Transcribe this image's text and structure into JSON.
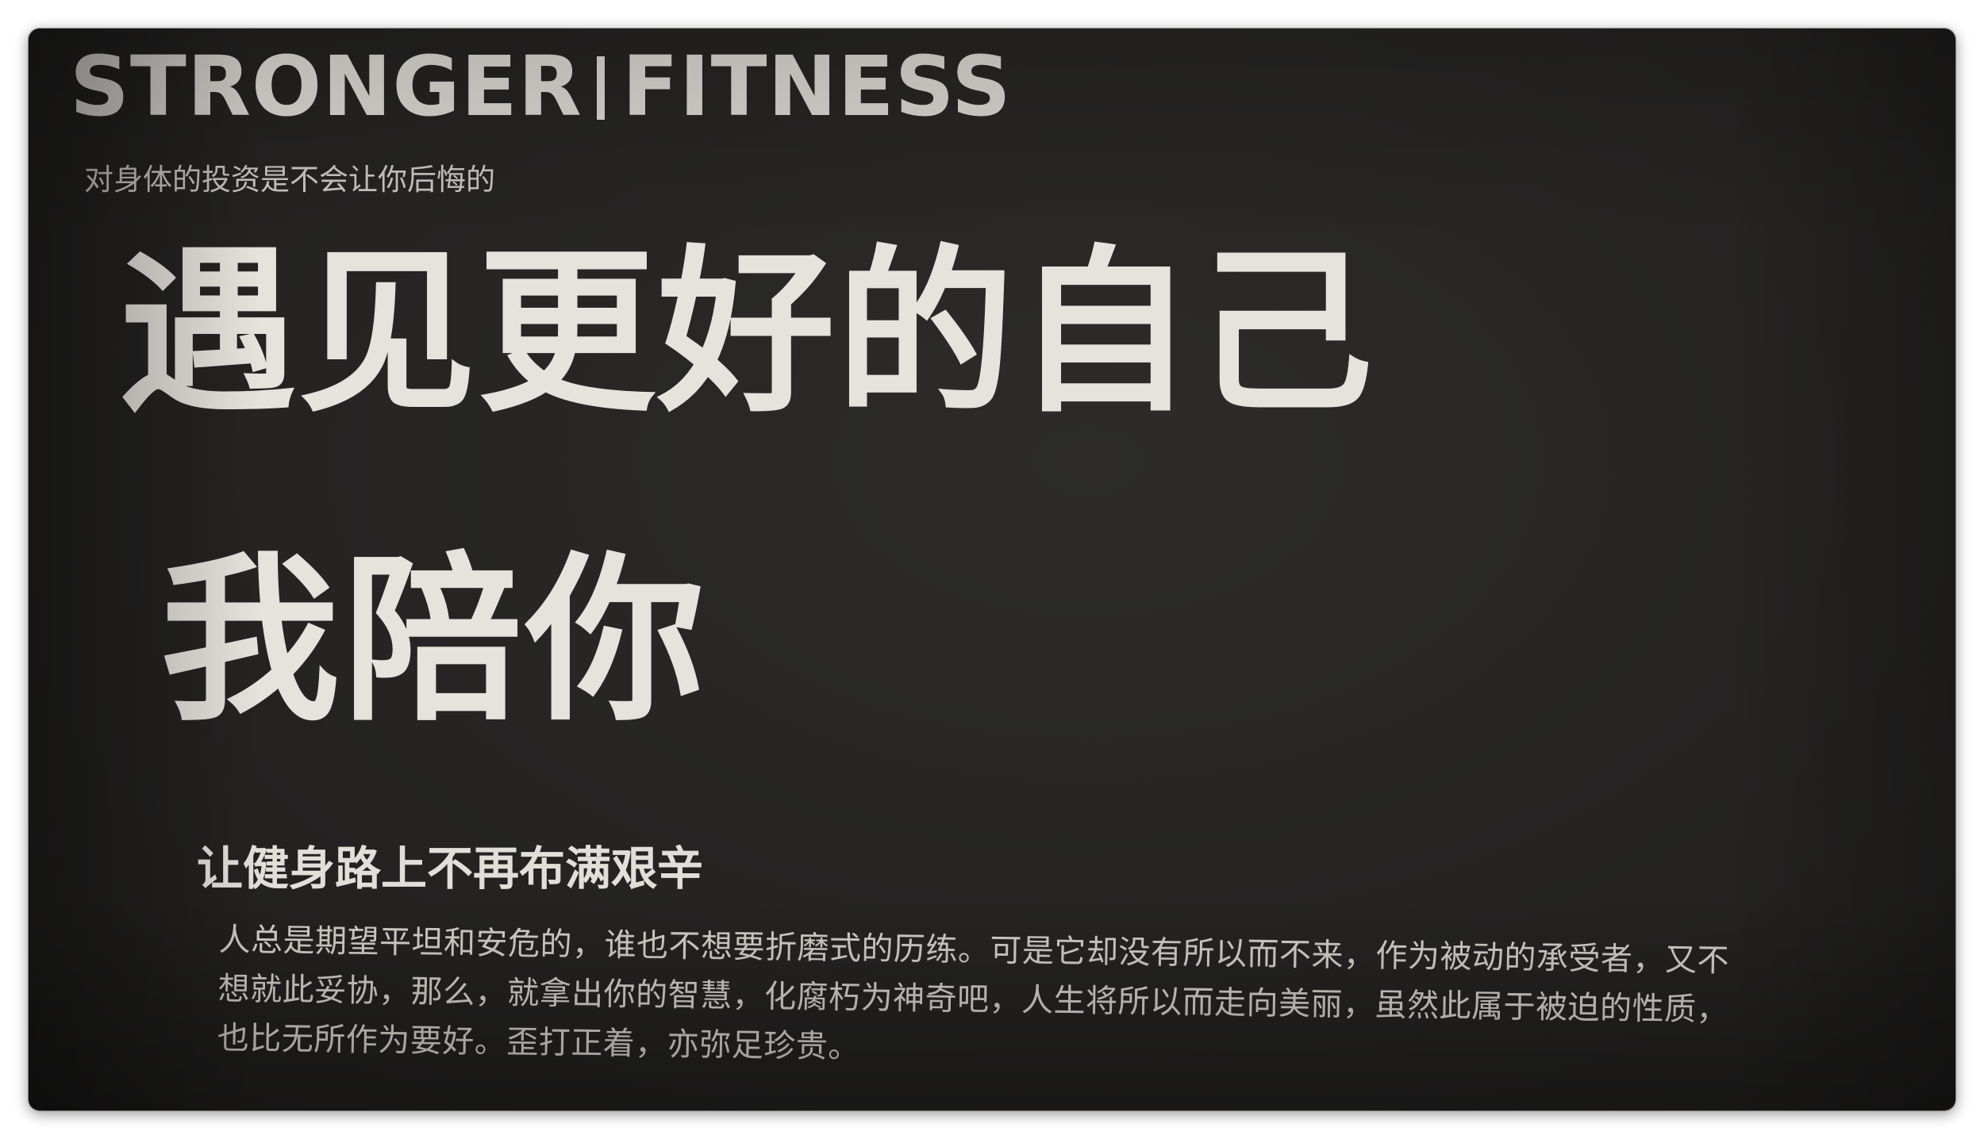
{
  "brand": {
    "left": "STRONGER",
    "right": "FITNESS"
  },
  "tagline": "对身体的投资是不会让你后悔的",
  "headline": {
    "line1": "遇见更好的自己",
    "line2": "我陪你"
  },
  "subhead": "让健身路上不再布满艰辛",
  "body": {
    "paragraph": "人总是期望平坦和安危的，谁也不想要折磨式的历练。可是它却没有所以而不来，作为被动的承受者，又不想就此妥协，那么，就拿出你的智慧，化腐朽为神奇吧，人生将所以而走向美丽，虽然此属于被迫的性质，也比无所作为要好。歪打正着，亦弥足珍贵。"
  },
  "colors": {
    "background": "#262524",
    "text": "#e6e2dc"
  }
}
